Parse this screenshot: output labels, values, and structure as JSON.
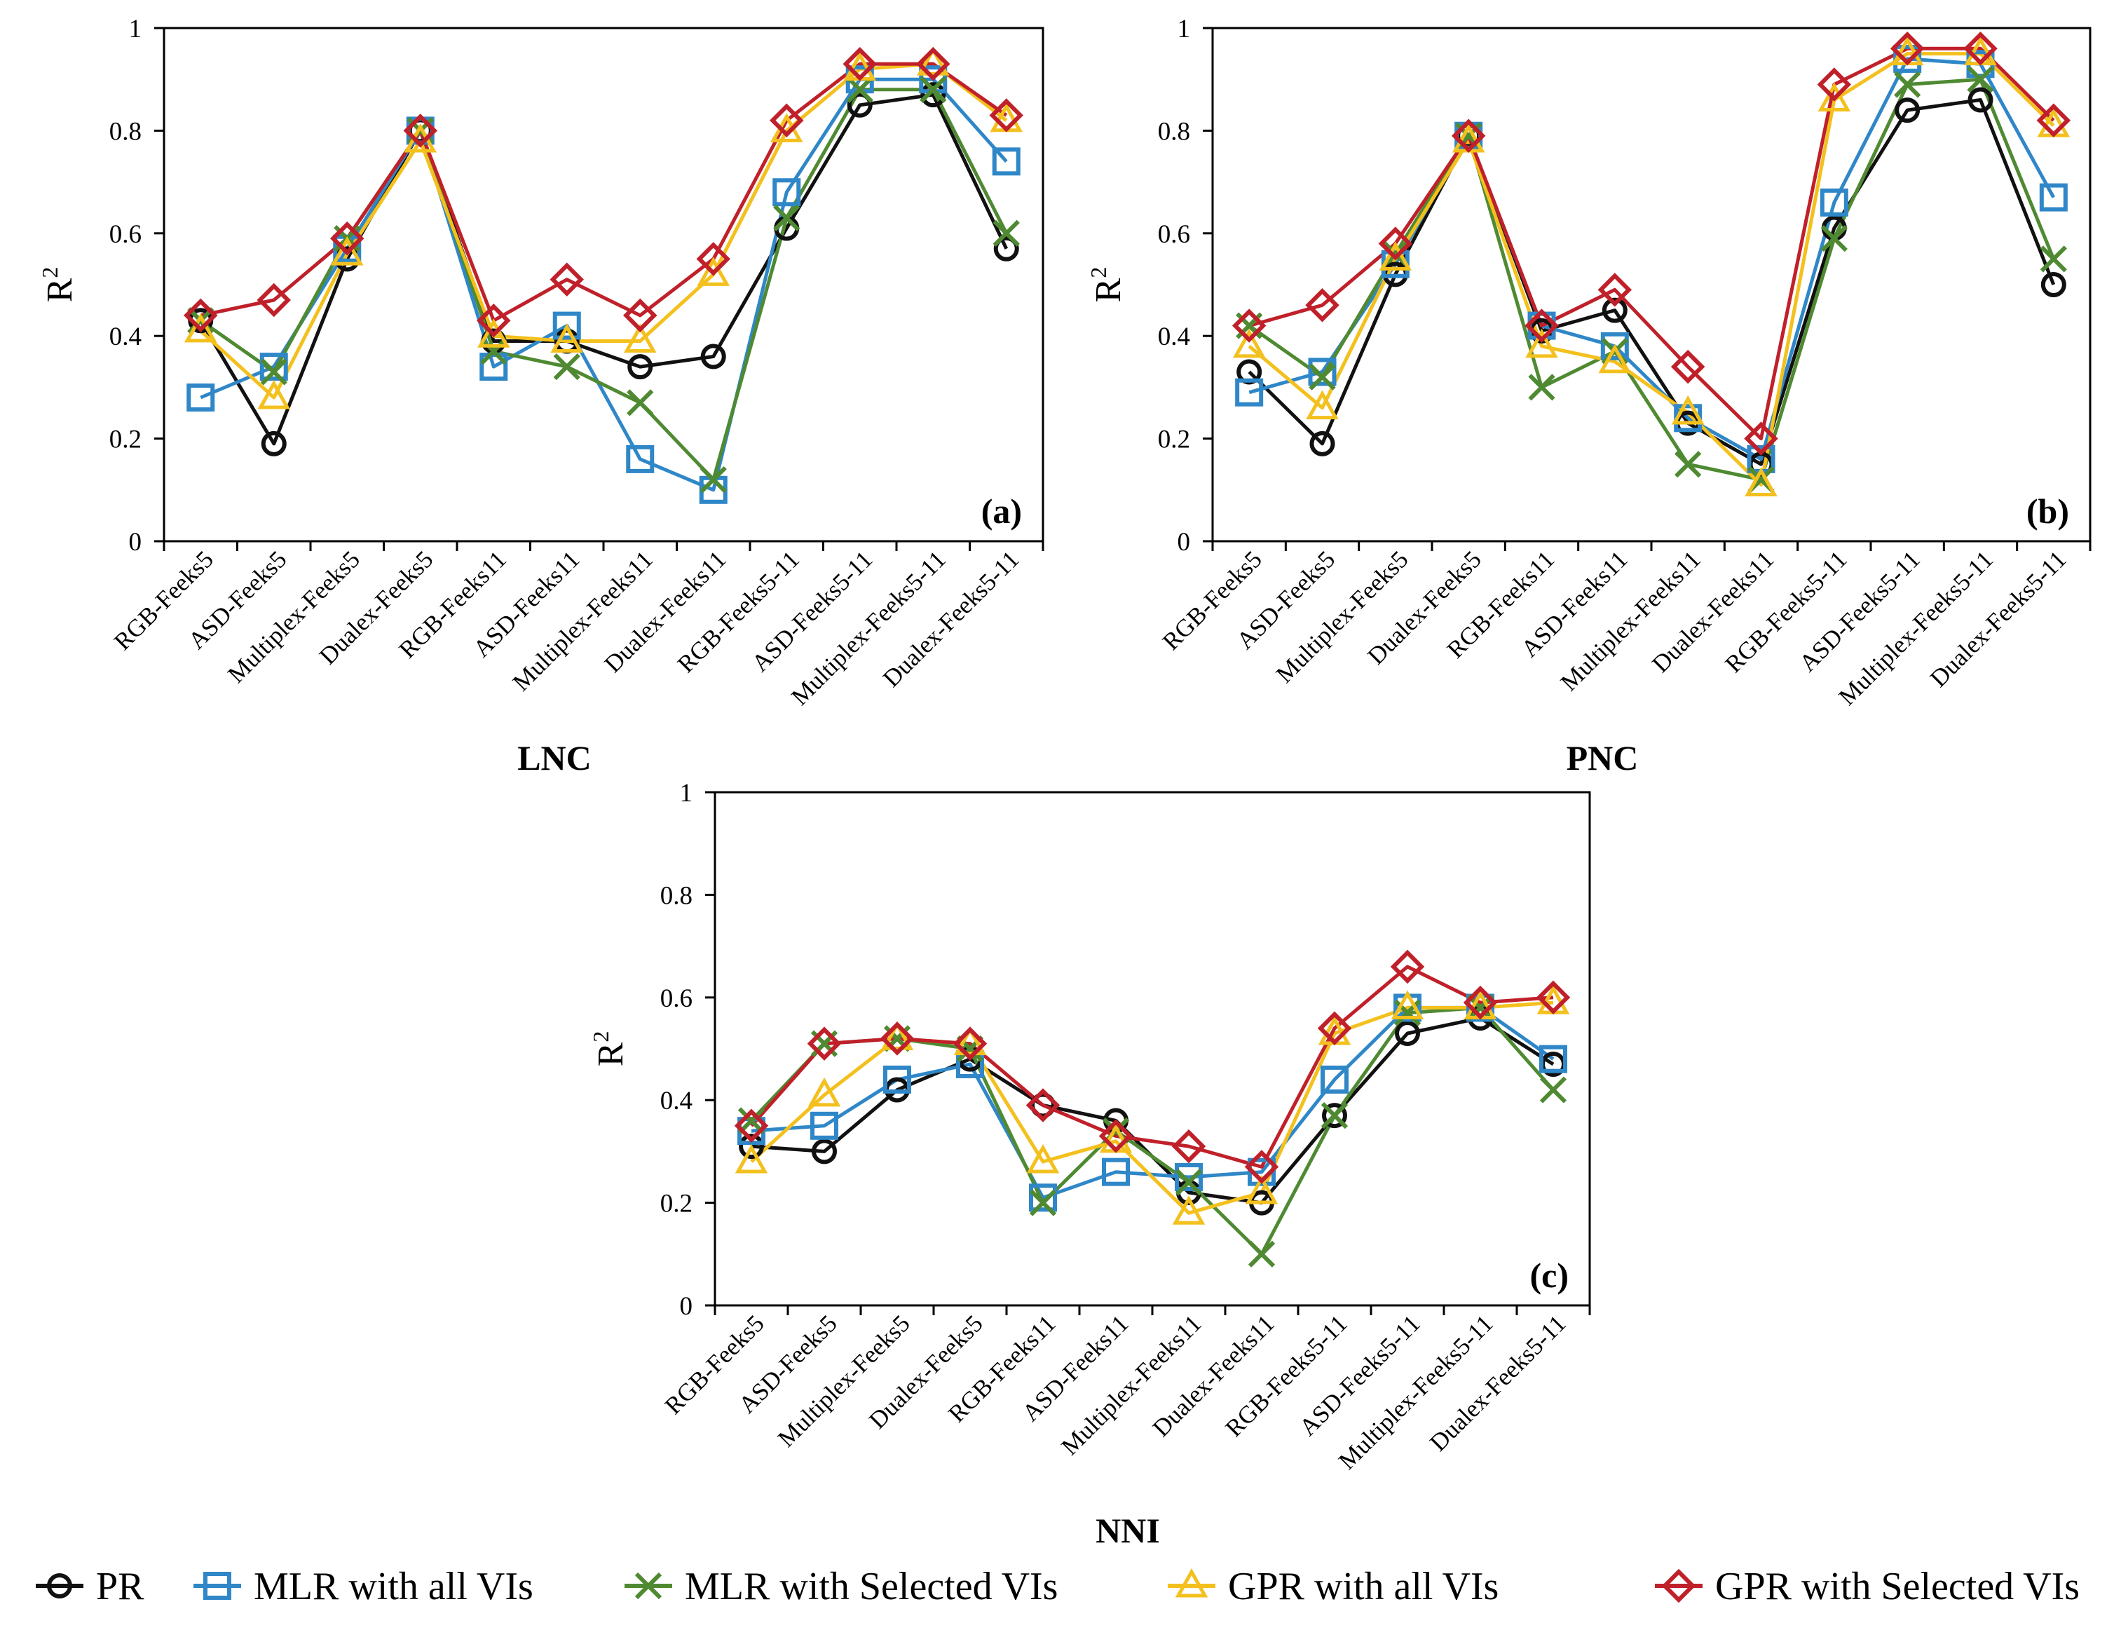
{
  "figure": {
    "colors": {
      "pr": "#111111",
      "mlr_all": "#2f87c8",
      "mlr_sel": "#4f8a32",
      "gpr_all": "#f3c01d",
      "gpr_sel": "#c0202a"
    }
  },
  "legend": [
    {
      "key": "pr",
      "label": "PR"
    },
    {
      "key": "mlr_all",
      "label": "MLR with all VIs"
    },
    {
      "key": "mlr_sel",
      "label": "MLR with Selected VIs"
    },
    {
      "key": "gpr_all",
      "label": "GPR with all VIs"
    },
    {
      "key": "gpr_sel",
      "label": "GPR with Selected VIs"
    }
  ],
  "chart_data": [
    {
      "type": "line",
      "panel_label": "(a)",
      "xlabel": "LNC",
      "ylabel": "R",
      "ylabel_sup": "2",
      "ylim": [
        0,
        1
      ],
      "yticks": [
        "0",
        "0.2",
        "0.4",
        "0.6",
        "0.8",
        "1"
      ],
      "categories": [
        "RGB-Feeks5",
        "ASD-Feeks5",
        "Multiplex-Feeks5",
        "Dualex-Feeks5",
        "RGB-Feeks11",
        "ASD-Feeks11",
        "Multiplex-Feeks11",
        "Dualex-Feeks11",
        "RGB-Feeks5-11",
        "ASD-Feeks5-11",
        "Multiplex-Feeks5-11",
        "Dualex-Feeks5-11"
      ],
      "series": [
        {
          "key": "pr",
          "name": "PR",
          "values": [
            0.43,
            0.19,
            0.55,
            0.8,
            0.39,
            0.39,
            0.34,
            0.36,
            0.61,
            0.85,
            0.87,
            0.57
          ]
        },
        {
          "key": "mlr_all",
          "name": "MLR with all VIs",
          "values": [
            0.28,
            0.34,
            0.57,
            0.8,
            0.34,
            0.42,
            0.16,
            0.1,
            0.68,
            0.9,
            0.9,
            0.74
          ]
        },
        {
          "key": "mlr_sel",
          "name": "MLR with Selected VIs",
          "values": [
            0.43,
            0.33,
            0.59,
            0.8,
            0.37,
            0.34,
            0.27,
            0.12,
            0.63,
            0.88,
            0.88,
            0.6
          ]
        },
        {
          "key": "gpr_all",
          "name": "GPR with all VIs",
          "values": [
            0.41,
            0.28,
            0.56,
            0.78,
            0.4,
            0.39,
            0.39,
            0.52,
            0.8,
            0.92,
            0.93,
            0.82
          ]
        },
        {
          "key": "gpr_sel",
          "name": "GPR with Selected VIs",
          "values": [
            0.44,
            0.47,
            0.59,
            0.8,
            0.43,
            0.51,
            0.44,
            0.55,
            0.82,
            0.93,
            0.93,
            0.83
          ]
        }
      ]
    },
    {
      "type": "line",
      "panel_label": "(b)",
      "xlabel": "PNC",
      "ylabel": "R",
      "ylabel_sup": "2",
      "ylim": [
        0,
        1
      ],
      "yticks": [
        "0",
        "0.2",
        "0.4",
        "0.6",
        "0.8",
        "1"
      ],
      "categories": [
        "RGB-Feeks5",
        "ASD-Feeks5",
        "Multiplex-Feeks5",
        "Dualex-Feeks5",
        "RGB-Feeks11",
        "ASD-Feeks11",
        "Multiplex-Feeks11",
        "Dualex-Feeks11",
        "RGB-Feeks5-11",
        "ASD-Feeks5-11",
        "Multiplex-Feeks5-11",
        "Dualex-Feeks5-11"
      ],
      "series": [
        {
          "key": "pr",
          "name": "PR",
          "values": [
            0.33,
            0.19,
            0.52,
            0.79,
            0.41,
            0.45,
            0.23,
            0.15,
            0.61,
            0.84,
            0.86,
            0.5
          ]
        },
        {
          "key": "mlr_all",
          "name": "MLR with all VIs",
          "values": [
            0.29,
            0.33,
            0.54,
            0.79,
            0.42,
            0.38,
            0.24,
            0.16,
            0.66,
            0.94,
            0.93,
            0.67
          ]
        },
        {
          "key": "mlr_sel",
          "name": "MLR with Selected VIs",
          "values": [
            0.42,
            0.32,
            0.56,
            0.79,
            0.3,
            0.37,
            0.15,
            0.12,
            0.59,
            0.89,
            0.9,
            0.55
          ]
        },
        {
          "key": "gpr_all",
          "name": "GPR with all VIs",
          "values": [
            0.38,
            0.26,
            0.55,
            0.78,
            0.38,
            0.35,
            0.25,
            0.11,
            0.86,
            0.95,
            0.95,
            0.81
          ]
        },
        {
          "key": "gpr_sel",
          "name": "GPR with Selected VIs",
          "values": [
            0.42,
            0.46,
            0.58,
            0.79,
            0.42,
            0.49,
            0.34,
            0.2,
            0.89,
            0.96,
            0.96,
            0.82
          ]
        }
      ]
    },
    {
      "type": "line",
      "panel_label": "(c)",
      "xlabel": "NNI",
      "ylabel": "R",
      "ylabel_sup": "2",
      "ylim": [
        0,
        1
      ],
      "yticks": [
        "0",
        "0.2",
        "0.4",
        "0.6",
        "0.8",
        "1"
      ],
      "categories": [
        "RGB-Feeks5",
        "ASD-Feeks5",
        "Multiplex-Feeks5",
        "Dualex-Feeks5",
        "RGB-Feeks11",
        "ASD-Feeks11",
        "Multiplex-Feeks11",
        "Dualex-Feeks11",
        "RGB-Feeks5-11",
        "ASD-Feeks5-11",
        "Multiplex-Feeks5-11",
        "Dualex-Feeks5-11"
      ],
      "series": [
        {
          "key": "pr",
          "name": "PR",
          "values": [
            0.31,
            0.3,
            0.42,
            0.48,
            0.39,
            0.36,
            0.22,
            0.2,
            0.37,
            0.53,
            0.56,
            0.47
          ]
        },
        {
          "key": "mlr_all",
          "name": "MLR with all VIs",
          "values": [
            0.34,
            0.35,
            0.44,
            0.47,
            0.21,
            0.26,
            0.25,
            0.26,
            0.44,
            0.58,
            0.58,
            0.48
          ]
        },
        {
          "key": "mlr_sel",
          "name": "MLR with Selected VIs",
          "values": [
            0.36,
            0.51,
            0.52,
            0.5,
            0.2,
            0.34,
            0.24,
            0.1,
            0.37,
            0.57,
            0.58,
            0.42
          ]
        },
        {
          "key": "gpr_all",
          "name": "GPR with all VIs",
          "values": [
            0.28,
            0.41,
            0.52,
            0.51,
            0.28,
            0.32,
            0.18,
            0.22,
            0.53,
            0.58,
            0.58,
            0.59
          ]
        },
        {
          "key": "gpr_sel",
          "name": "GPR with Selected VIs",
          "values": [
            0.35,
            0.51,
            0.52,
            0.51,
            0.39,
            0.33,
            0.31,
            0.27,
            0.54,
            0.66,
            0.59,
            0.6
          ]
        }
      ]
    }
  ]
}
